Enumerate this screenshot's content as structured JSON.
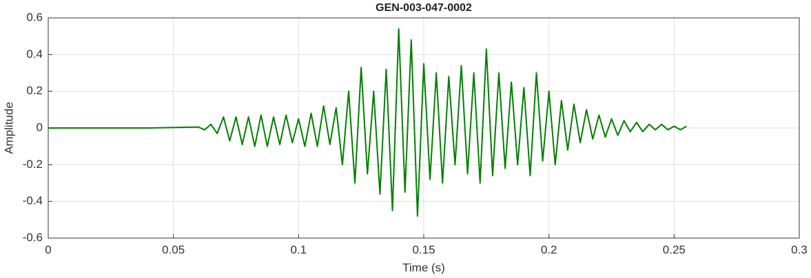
{
  "chart_data": {
    "type": "line",
    "title": "GEN-003-047-0002",
    "x_label": "Time (s)",
    "y_label": "Amplitude",
    "x": [
      0,
      0.02,
      0.04,
      0.06,
      0.0625,
      0.065,
      0.0675,
      0.07,
      0.0725,
      0.075,
      0.0775,
      0.08,
      0.0825,
      0.085,
      0.0875,
      0.09,
      0.0925,
      0.095,
      0.0975,
      0.1,
      0.1025,
      0.105,
      0.1075,
      0.11,
      0.1125,
      0.115,
      0.1175,
      0.12,
      0.1225,
      0.125,
      0.1275,
      0.13,
      0.1325,
      0.135,
      0.1375,
      0.14,
      0.1425,
      0.145,
      0.1475,
      0.15,
      0.1525,
      0.155,
      0.1575,
      0.16,
      0.1625,
      0.165,
      0.1675,
      0.17,
      0.1725,
      0.175,
      0.1775,
      0.18,
      0.1825,
      0.185,
      0.1875,
      0.19,
      0.1925,
      0.195,
      0.1975,
      0.2,
      0.2025,
      0.205,
      0.2075,
      0.21,
      0.2125,
      0.215,
      0.2175,
      0.22,
      0.2225,
      0.225,
      0.2275,
      0.23,
      0.2325,
      0.235,
      0.2375,
      0.24,
      0.2425,
      0.245,
      0.2475,
      0.25,
      0.2525,
      0.255
    ],
    "values": [
      0,
      0,
      0,
      0.005,
      -0.01,
      0.02,
      -0.03,
      0.06,
      -0.07,
      0.06,
      -0.09,
      0.06,
      -0.1,
      0.07,
      -0.1,
      0.06,
      -0.09,
      0.07,
      -0.08,
      0.05,
      -0.1,
      0.08,
      -0.1,
      0.12,
      -0.09,
      0.11,
      -0.2,
      0.2,
      -0.3,
      0.33,
      -0.25,
      0.2,
      -0.36,
      0.32,
      -0.45,
      0.54,
      -0.35,
      0.48,
      -0.48,
      0.35,
      -0.28,
      0.3,
      -0.3,
      0.28,
      -0.2,
      0.34,
      -0.25,
      0.3,
      -0.3,
      0.43,
      -0.26,
      0.3,
      -0.22,
      0.25,
      -0.2,
      0.22,
      -0.26,
      0.3,
      -0.18,
      0.2,
      -0.2,
      0.15,
      -0.12,
      0.13,
      -0.08,
      0.1,
      -0.06,
      0.07,
      -0.05,
      0.05,
      -0.04,
      0.04,
      -0.02,
      0.03,
      -0.02,
      0.02,
      -0.01,
      0.02,
      -0.01,
      0.01,
      -0.01,
      0.01
    ],
    "color": "#008000",
    "xlim": [
      0,
      0.3
    ],
    "xticks": [
      0,
      0.05,
      0.1,
      0.15,
      0.2,
      0.25,
      0.3
    ],
    "ylim": [
      -0.6,
      0.6
    ],
    "yticks": [
      -0.6,
      -0.4,
      -0.2,
      0,
      0.2,
      0.4,
      0.6
    ],
    "grid": true
  }
}
